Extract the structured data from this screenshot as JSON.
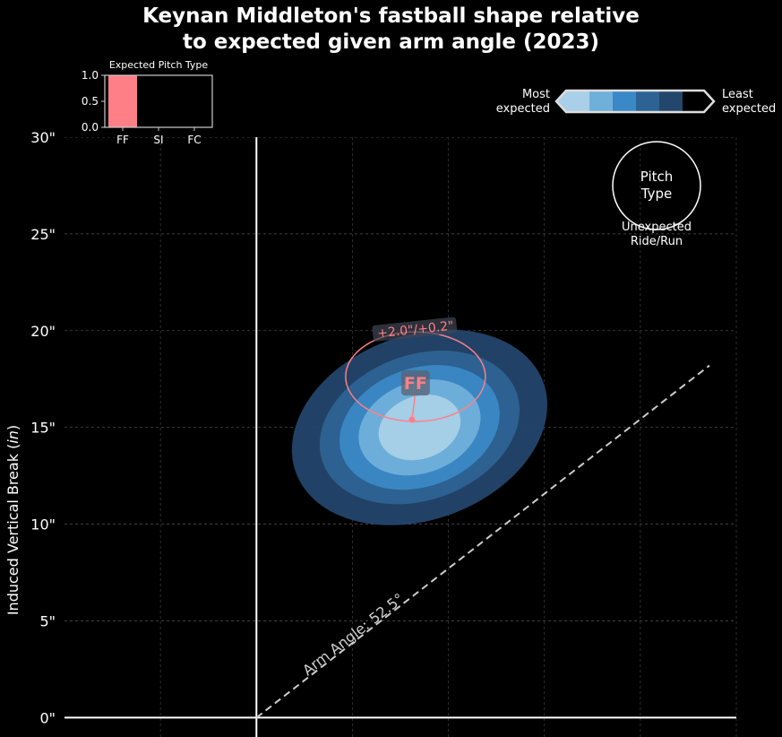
{
  "title_lines": [
    "Keynan Middleton's fastball shape relative",
    "to expected given arm angle (2023)"
  ],
  "colors": {
    "background": "#000000",
    "most_expected": "#a9d0e8",
    "levels": [
      "#a9d0e8",
      "#6fb0da",
      "#3a88c6",
      "#2d6394",
      "#23466b"
    ],
    "pitch_marker": "#ff7f87",
    "axis": "#ffffff",
    "arm_angle_line": "#cccccc"
  },
  "inset": {
    "title": "Expected Pitch Type",
    "yticks": [
      "1.0",
      "0.5",
      "0.0"
    ]
  },
  "legend": {
    "most_label_1": "Most",
    "most_label_2": "expected",
    "least_label_1": "Least",
    "least_label_2": "expected",
    "circle_label_1": "Pitch",
    "circle_label_2": "Type",
    "circle_caption_1": "Unexpected",
    "circle_caption_2": "Ride/Run"
  },
  "main": {
    "ylabel": "Induced Vertical Break (in)",
    "ytick_labels": [
      "0\"",
      "5\"",
      "10\"",
      "15\"",
      "20\"",
      "25\"",
      "30\""
    ],
    "arm_angle_text": "Arm Angle: 52.5°",
    "pitch_label": "FF",
    "delta_label": "+2.0\"/+0.2\""
  },
  "chart_data": [
    {
      "type": "scatter",
      "xlabel": "",
      "ylabel": "Induced Vertical Break (in)",
      "xlim": [
        -10,
        25
      ],
      "ylim": [
        -1,
        30
      ],
      "yticks": [
        0,
        5,
        10,
        15,
        20,
        25,
        30
      ],
      "grid": true,
      "arm_angle_deg": 52.5,
      "expected_center": [
        8.5,
        15.0
      ],
      "density_levels": 5,
      "points": [
        {
          "label": "FF",
          "x": 8.1,
          "y": 15.4,
          "delta_text": "+2.0\"/+0.2\""
        }
      ]
    },
    {
      "type": "bar",
      "title": "Expected Pitch Type",
      "categories": [
        "FF",
        "SI",
        "FC"
      ],
      "values": [
        1.0,
        0.0,
        0.0
      ],
      "ylim": [
        0,
        1
      ]
    }
  ]
}
